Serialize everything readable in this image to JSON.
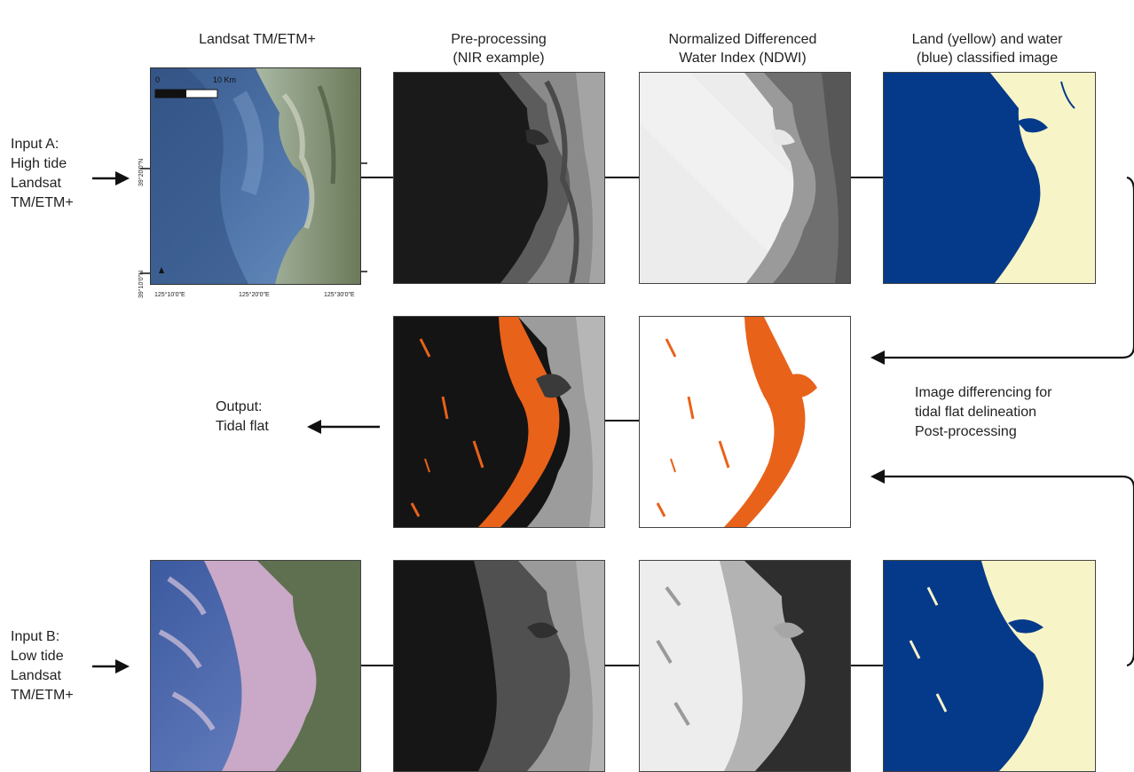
{
  "columns": {
    "col1": "Landsat TM/ETM+",
    "col2_line1": "Pre-processing",
    "col2_line2": "(NIR example)",
    "col3_line1": "Normalized Differenced",
    "col3_line2": "Water Index (NDWI)",
    "col4_line1": "Land (yellow) and water",
    "col4_line2": "(blue) classified image"
  },
  "inputs": {
    "a": [
      "Input A:",
      "High tide",
      "Landsat",
      "TM/ETM+"
    ],
    "b": [
      "Input B:",
      "Low tide",
      "Landsat",
      "TM/ETM+"
    ]
  },
  "output": [
    "Output:",
    "Tidal flat"
  ],
  "process": [
    "Image differencing for",
    "tidal flat delineation",
    "Post-processing"
  ],
  "map_labels": {
    "scale_start": "0",
    "scale_end": "10  Km",
    "lon": [
      "125°10'0\"E",
      "125°20'0\"E",
      "125°30'0\"E"
    ],
    "lat": [
      "39°20'0\"N",
      "39°10'0\"N"
    ]
  },
  "colors": {
    "water_blue": "#053a8a",
    "land_yellow": "#f7f5c8",
    "tidal_flat_orange": "#e8621a",
    "nir_dark": "#1a1a1a"
  }
}
